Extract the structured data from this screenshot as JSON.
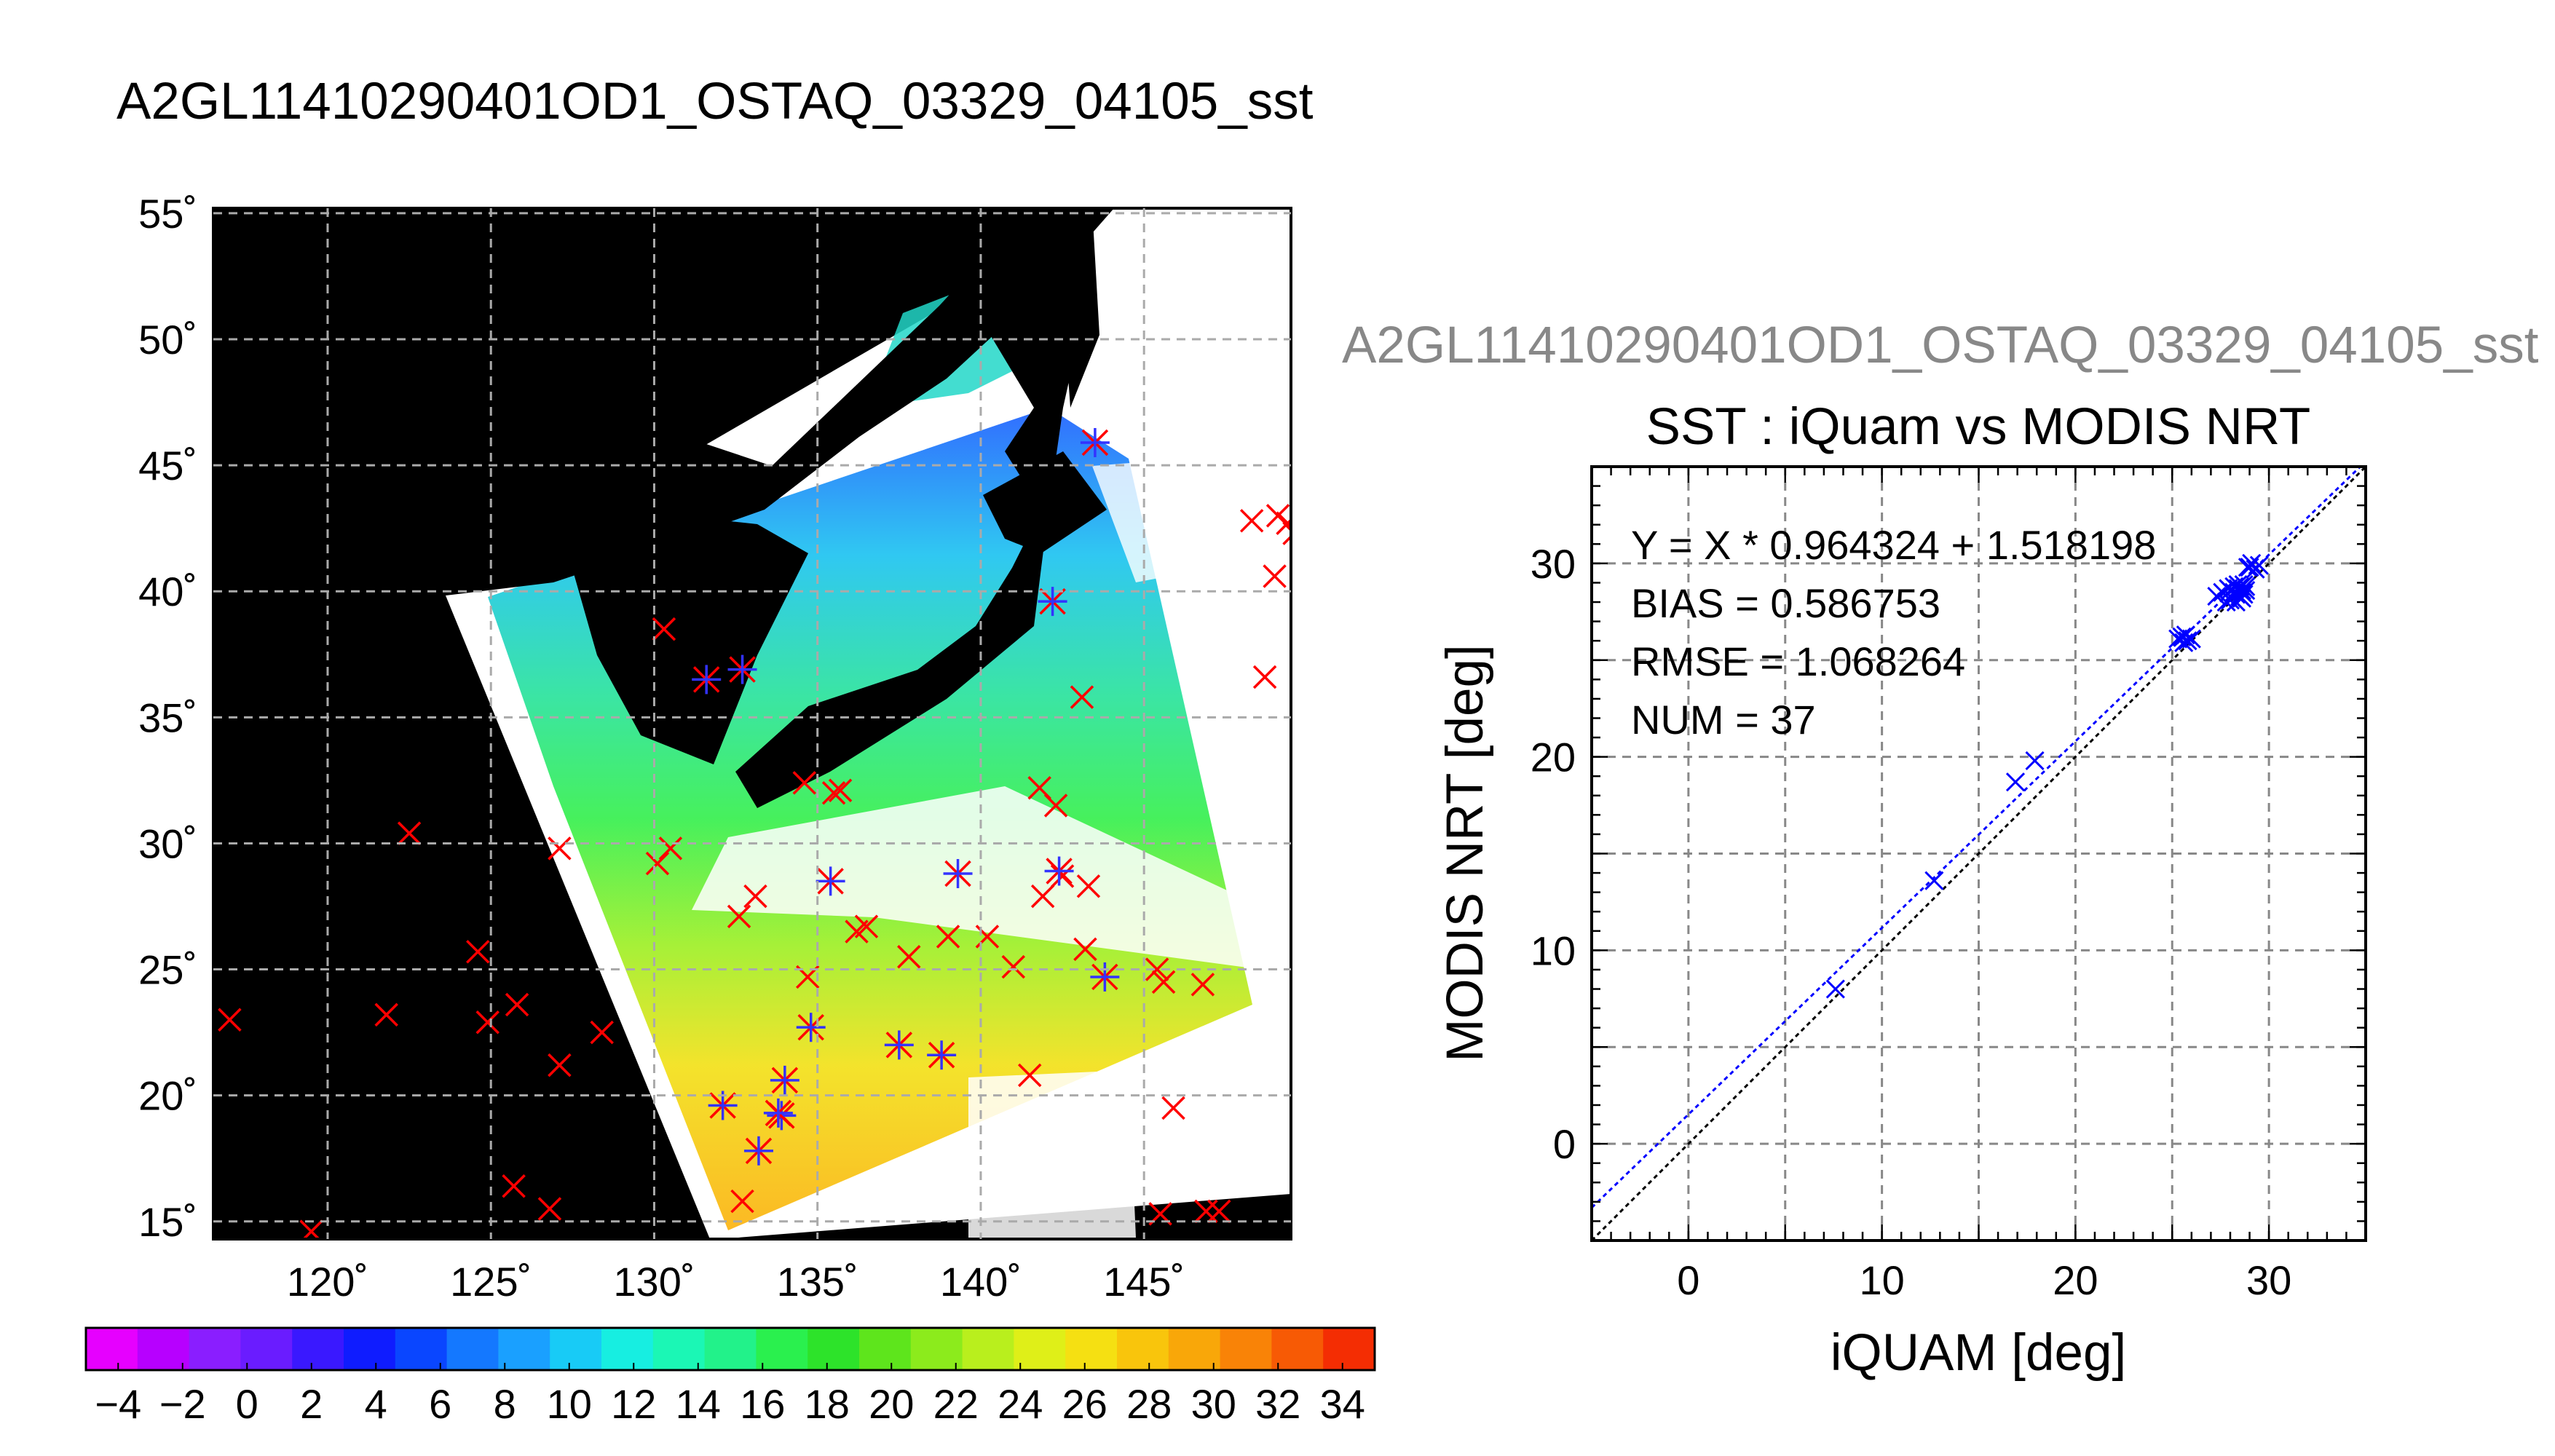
{
  "map_panel": {
    "title": "A2GL11410290401OD1_OSTAQ_03329_04105_sst",
    "lon_ticks": [
      120,
      125,
      130,
      135,
      140,
      145
    ],
    "lat_ticks": [
      15,
      20,
      25,
      30,
      35,
      40,
      45,
      50,
      55
    ],
    "lon_range": [
      116.5,
      149.5
    ],
    "lat_range": [
      14.3,
      55.2
    ],
    "degree_suffix": "˚",
    "background_color": "#000000",
    "marker_colors": {
      "iquam_only": "#ff0000",
      "matched": "#3333ff"
    },
    "matched_points": [
      [
        131.6,
        36.5
      ],
      [
        132.7,
        36.9
      ],
      [
        143.5,
        45.9
      ],
      [
        142.2,
        39.6
      ],
      [
        142.4,
        28.9
      ],
      [
        139.3,
        28.8
      ],
      [
        135.4,
        28.5
      ],
      [
        134.8,
        22.7
      ],
      [
        134.0,
        20.6
      ],
      [
        133.9,
        19.2
      ],
      [
        133.8,
        19.3
      ],
      [
        133.2,
        17.8
      ],
      [
        132.1,
        19.6
      ],
      [
        137.5,
        22.0
      ],
      [
        138.8,
        21.6
      ],
      [
        143.8,
        24.7
      ]
    ],
    "iquam_points": [
      [
        130.3,
        38.5
      ],
      [
        134.6,
        32.4
      ],
      [
        135.5,
        32.0
      ],
      [
        135.7,
        32.1
      ],
      [
        141.8,
        32.2
      ],
      [
        142.3,
        31.5
      ],
      [
        143.1,
        35.8
      ],
      [
        142.5,
        28.7
      ],
      [
        143.3,
        28.3
      ],
      [
        141.9,
        27.9
      ],
      [
        136.2,
        26.5
      ],
      [
        136.5,
        26.7
      ],
      [
        137.8,
        25.5
      ],
      [
        139.0,
        26.3
      ],
      [
        140.2,
        26.3
      ],
      [
        141.0,
        25.1
      ],
      [
        143.2,
        25.8
      ],
      [
        145.4,
        25.0
      ],
      [
        145.6,
        24.5
      ],
      [
        146.8,
        24.4
      ],
      [
        134.7,
        24.7
      ],
      [
        133.1,
        27.9
      ],
      [
        132.6,
        27.1
      ],
      [
        130.5,
        29.8
      ],
      [
        130.1,
        29.2
      ],
      [
        127.1,
        29.8
      ],
      [
        122.5,
        30.4
      ],
      [
        124.6,
        25.7
      ],
      [
        125.8,
        23.6
      ],
      [
        124.9,
        22.9
      ],
      [
        121.8,
        23.2
      ],
      [
        117.0,
        23.0
      ],
      [
        127.1,
        21.2
      ],
      [
        128.4,
        22.5
      ],
      [
        141.5,
        20.8
      ],
      [
        145.9,
        19.5
      ],
      [
        125.7,
        16.4
      ],
      [
        126.8,
        15.5
      ],
      [
        119.5,
        14.6
      ],
      [
        132.7,
        15.8
      ],
      [
        145.5,
        15.3
      ],
      [
        146.9,
        15.4
      ],
      [
        147.3,
        15.4
      ],
      [
        148.3,
        42.8
      ],
      [
        149.1,
        43.0
      ],
      [
        149.4,
        42.7
      ],
      [
        149.6,
        42.3
      ],
      [
        149.0,
        40.6
      ],
      [
        148.7,
        36.6
      ]
    ]
  },
  "colorbar": {
    "tick_labels": [
      "−4",
      "−2",
      "0",
      "2",
      "4",
      "6",
      "8",
      "10",
      "12",
      "14",
      "16",
      "18",
      "20",
      "22",
      "24",
      "26",
      "28",
      "30",
      "32",
      "34"
    ],
    "range": [
      -5,
      35
    ]
  },
  "ghost_title": "A2GL11410290401OD1_OSTAQ_03329_04105_sst",
  "chart_data": {
    "type": "scatter",
    "title": "SST : iQuam vs MODIS NRT",
    "xlabel": "iQUAM [deg]",
    "ylabel": "MODIS NRT [deg]",
    "xlim": [
      -5,
      35
    ],
    "ylim": [
      -5,
      35
    ],
    "xticks": [
      0,
      10,
      20,
      30
    ],
    "yticks": [
      0,
      10,
      20,
      30
    ],
    "grid": true,
    "stats": {
      "fit": "Y = X * 0.964324 + 1.518198",
      "bias": "BIAS = 0.586753",
      "rmse": "RMSE = 1.068264",
      "num": "NUM = 37"
    },
    "fit_line": {
      "slope": 0.964324,
      "intercept": 1.518198,
      "color": "#0000ff"
    },
    "identity_line_color": "#000000",
    "marker_color": "#0000ff",
    "points": [
      [
        7.6,
        8.0
      ],
      [
        12.7,
        13.6
      ],
      [
        16.9,
        18.7
      ],
      [
        17.9,
        19.8
      ],
      [
        25.3,
        26.1
      ],
      [
        25.5,
        26.2
      ],
      [
        25.6,
        25.9
      ],
      [
        25.8,
        26.0
      ],
      [
        26.0,
        26.1
      ],
      [
        25.7,
        26.3
      ],
      [
        27.3,
        28.3
      ],
      [
        27.6,
        28.5
      ],
      [
        27.8,
        28.0
      ],
      [
        28.0,
        28.6
      ],
      [
        28.2,
        28.8
      ],
      [
        28.3,
        28.4
      ],
      [
        28.4,
        28.7
      ],
      [
        28.5,
        28.3
      ],
      [
        28.6,
        28.5
      ],
      [
        28.7,
        28.9
      ],
      [
        28.8,
        28.6
      ],
      [
        28.4,
        28.9
      ],
      [
        28.1,
        28.2
      ],
      [
        28.6,
        28.2
      ],
      [
        28.9,
        29.8
      ],
      [
        29.1,
        30.0
      ],
      [
        29.3,
        29.7
      ],
      [
        29.5,
        29.9
      ],
      [
        28.2,
        28.5
      ],
      [
        28.5,
        28.8
      ],
      [
        28.0,
        28.1
      ],
      [
        27.9,
        28.7
      ],
      [
        28.7,
        28.4
      ],
      [
        28.3,
        28.0
      ],
      [
        28.8,
        28.8
      ],
      [
        29.0,
        29.8
      ],
      [
        28.6,
        28.6
      ]
    ]
  }
}
